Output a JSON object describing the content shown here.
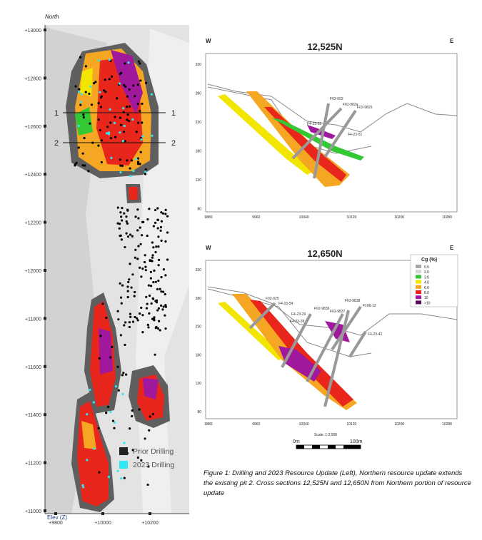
{
  "map": {
    "north_label": "North",
    "y_labels": [
      "+13000",
      "+12800",
      "+12600",
      "+12400",
      "+12200",
      "+12000",
      "+11800",
      "+11600",
      "+11400",
      "+11200",
      "+11000"
    ],
    "x_labels": [
      "+9800",
      "+10000",
      "+10200"
    ],
    "elev_label": "Elev (Z)",
    "section_labels": [
      "1",
      "1",
      "2",
      "2"
    ],
    "legend": [
      "Prior Drilling",
      "2023 Drilling"
    ]
  },
  "sections": [
    {
      "west": "W",
      "east": "E",
      "title": "12,525N",
      "y_labels": [
        330,
        280,
        230,
        180,
        130,
        80
      ],
      "x_labels": [
        9880,
        9960,
        10040,
        10120,
        10200,
        10280
      ],
      "holes": [
        "F02-002",
        "F02-982a",
        "F02-9825",
        "F4-23-52",
        "F4-23-51"
      ]
    },
    {
      "west": "W",
      "east": "E",
      "title": "12,650N",
      "y_labels": [
        330,
        280,
        230,
        180,
        130,
        80
      ],
      "x_labels": [
        9880,
        9960,
        10040,
        10120,
        10200,
        10280
      ],
      "holes": [
        "F02-025",
        "F4-23-54",
        "F4-23-29",
        "F4-23-28",
        "F02-9836",
        "F02-9837",
        "F02-9838",
        "F106-12",
        "F4-23-42"
      ]
    }
  ],
  "grade_legend": {
    "title": "Cg (%)",
    "items": [
      {
        "label": "0.5",
        "color": "#a8a8a8"
      },
      {
        "label": "2.0",
        "color": "#d8d8d8"
      },
      {
        "label": "3.0",
        "color": "#34c934"
      },
      {
        "label": "4.0",
        "color": "#f2e600"
      },
      {
        "label": "6.0",
        "color": "#f5a623"
      },
      {
        "label": "8.0",
        "color": "#e8261c"
      },
      {
        "label": "10",
        "color": "#a0189c"
      },
      {
        "label": ">10",
        "color": "#5a0a5a"
      }
    ]
  },
  "scale": {
    "ratio": "Scale: 1:2,000",
    "start": "0m",
    "end": "100m"
  },
  "caption": "Figure 1: Drilling and 2023 Resource Update (Left), Northern resource update extends the existing pit 2. Cross sections 12,525N and 12,650N from Northern portion of resource update"
}
